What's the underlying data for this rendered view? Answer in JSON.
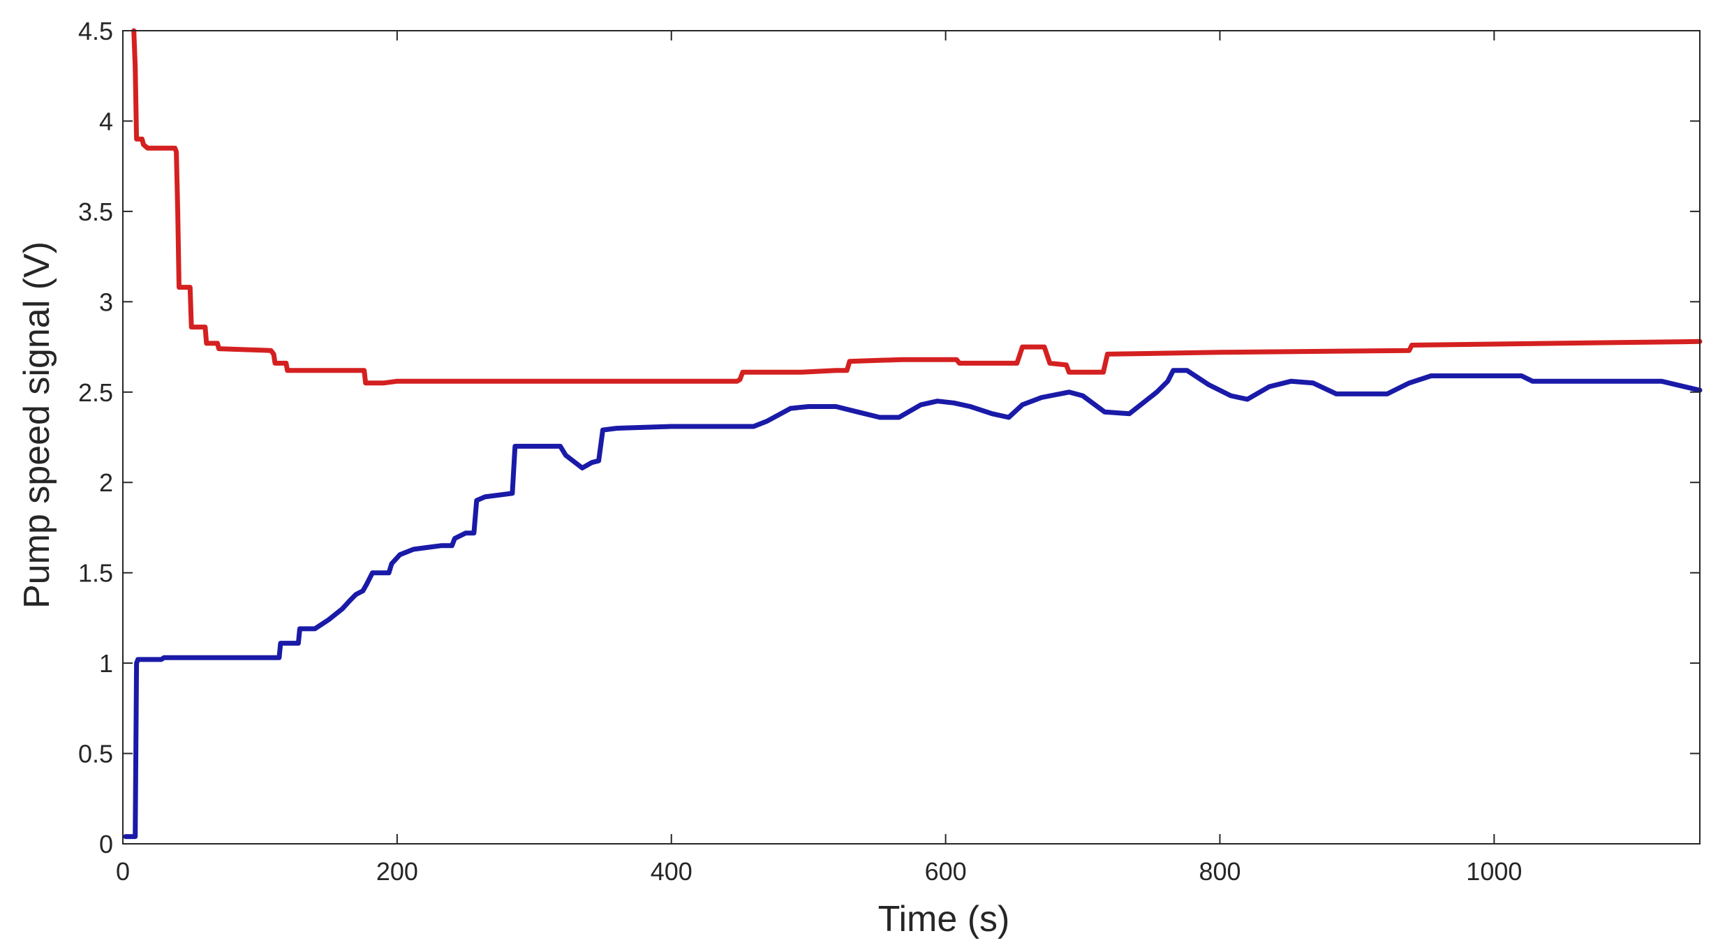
{
  "chart_data": {
    "type": "line",
    "title": "",
    "xlabel": "Time (s)",
    "ylabel": "Pump speed signal (V)",
    "xlim": [
      0,
      1150
    ],
    "ylim": [
      0,
      4.5
    ],
    "xticks": [
      0,
      200,
      400,
      600,
      800,
      1000
    ],
    "xtick_labels": [
      "0",
      "200",
      "400",
      "600",
      "800",
      "1000"
    ],
    "yticks": [
      0,
      0.5,
      1,
      1.5,
      2,
      2.5,
      3,
      3.5,
      4,
      4.5
    ],
    "ytick_labels": [
      "0",
      "0.5",
      "1",
      "1.5",
      "2",
      "2.5",
      "3",
      "3.5",
      "4",
      "4.5"
    ],
    "grid": true,
    "series": [
      {
        "color": "#d42020",
        "points": [
          [
            8,
            4.5
          ],
          [
            9,
            4.3
          ],
          [
            10,
            3.9
          ],
          [
            14,
            3.9
          ],
          [
            15,
            3.87
          ],
          [
            18,
            3.85
          ],
          [
            38,
            3.85
          ],
          [
            39,
            3.83
          ],
          [
            40,
            3.5
          ],
          [
            41,
            3.08
          ],
          [
            49,
            3.08
          ],
          [
            50,
            2.86
          ],
          [
            60,
            2.86
          ],
          [
            61,
            2.77
          ],
          [
            69,
            2.77
          ],
          [
            70,
            2.74
          ],
          [
            108,
            2.73
          ],
          [
            110,
            2.71
          ],
          [
            111,
            2.66
          ],
          [
            119,
            2.66
          ],
          [
            120,
            2.62
          ],
          [
            176,
            2.62
          ],
          [
            177,
            2.55
          ],
          [
            190,
            2.55
          ],
          [
            200,
            2.56
          ],
          [
            448,
            2.56
          ],
          [
            450,
            2.57
          ],
          [
            452,
            2.61
          ],
          [
            495,
            2.61
          ],
          [
            520,
            2.62
          ],
          [
            528,
            2.62
          ],
          [
            530,
            2.67
          ],
          [
            568,
            2.68
          ],
          [
            608,
            2.68
          ],
          [
            610,
            2.66
          ],
          [
            648,
            2.66
          ],
          [
            652,
            2.66
          ],
          [
            656,
            2.75
          ],
          [
            672,
            2.75
          ],
          [
            676,
            2.66
          ],
          [
            688,
            2.65
          ],
          [
            690,
            2.61
          ],
          [
            715,
            2.61
          ],
          [
            718,
            2.71
          ],
          [
            800,
            2.72
          ],
          [
            938,
            2.73
          ],
          [
            940,
            2.76
          ],
          [
            1150,
            2.78
          ]
        ]
      },
      {
        "color": "#1a1aa8",
        "points": [
          [
            2,
            0.04
          ],
          [
            8,
            0.04
          ],
          [
            9,
            0.04
          ],
          [
            10,
            1.0
          ],
          [
            11,
            1.02
          ],
          [
            28,
            1.02
          ],
          [
            30,
            1.03
          ],
          [
            114,
            1.03
          ],
          [
            115,
            1.11
          ],
          [
            128,
            1.11
          ],
          [
            129,
            1.19
          ],
          [
            140,
            1.19
          ],
          [
            150,
            1.24
          ],
          [
            160,
            1.3
          ],
          [
            166,
            1.35
          ],
          [
            170,
            1.38
          ],
          [
            175,
            1.4
          ],
          [
            178,
            1.44
          ],
          [
            182,
            1.5
          ],
          [
            194,
            1.5
          ],
          [
            196,
            1.55
          ],
          [
            202,
            1.6
          ],
          [
            212,
            1.63
          ],
          [
            222,
            1.64
          ],
          [
            232,
            1.65
          ],
          [
            240,
            1.65
          ],
          [
            242,
            1.69
          ],
          [
            250,
            1.72
          ],
          [
            256,
            1.72
          ],
          [
            258,
            1.9
          ],
          [
            264,
            1.92
          ],
          [
            284,
            1.94
          ],
          [
            286,
            2.2
          ],
          [
            300,
            2.2
          ],
          [
            319,
            2.2
          ],
          [
            323,
            2.15
          ],
          [
            335,
            2.08
          ],
          [
            342,
            2.11
          ],
          [
            347,
            2.12
          ],
          [
            350,
            2.29
          ],
          [
            360,
            2.3
          ],
          [
            400,
            2.31
          ],
          [
            460,
            2.31
          ],
          [
            470,
            2.34
          ],
          [
            487,
            2.41
          ],
          [
            500,
            2.42
          ],
          [
            520,
            2.42
          ],
          [
            536,
            2.39
          ],
          [
            552,
            2.36
          ],
          [
            566,
            2.36
          ],
          [
            582,
            2.43
          ],
          [
            594,
            2.45
          ],
          [
            606,
            2.44
          ],
          [
            618,
            2.42
          ],
          [
            634,
            2.38
          ],
          [
            646,
            2.36
          ],
          [
            656,
            2.43
          ],
          [
            670,
            2.47
          ],
          [
            690,
            2.5
          ],
          [
            700,
            2.48
          ],
          [
            716,
            2.39
          ],
          [
            734,
            2.38
          ],
          [
            754,
            2.5
          ],
          [
            762,
            2.56
          ],
          [
            766,
            2.62
          ],
          [
            776,
            2.62
          ],
          [
            792,
            2.54
          ],
          [
            808,
            2.48
          ],
          [
            820,
            2.46
          ],
          [
            836,
            2.53
          ],
          [
            852,
            2.56
          ],
          [
            868,
            2.55
          ],
          [
            885,
            2.49
          ],
          [
            900,
            2.49
          ],
          [
            922,
            2.49
          ],
          [
            938,
            2.55
          ],
          [
            954,
            2.59
          ],
          [
            1020,
            2.59
          ],
          [
            1028,
            2.56
          ],
          [
            1062,
            2.56
          ],
          [
            1122,
            2.56
          ],
          [
            1150,
            2.51
          ]
        ]
      }
    ]
  }
}
